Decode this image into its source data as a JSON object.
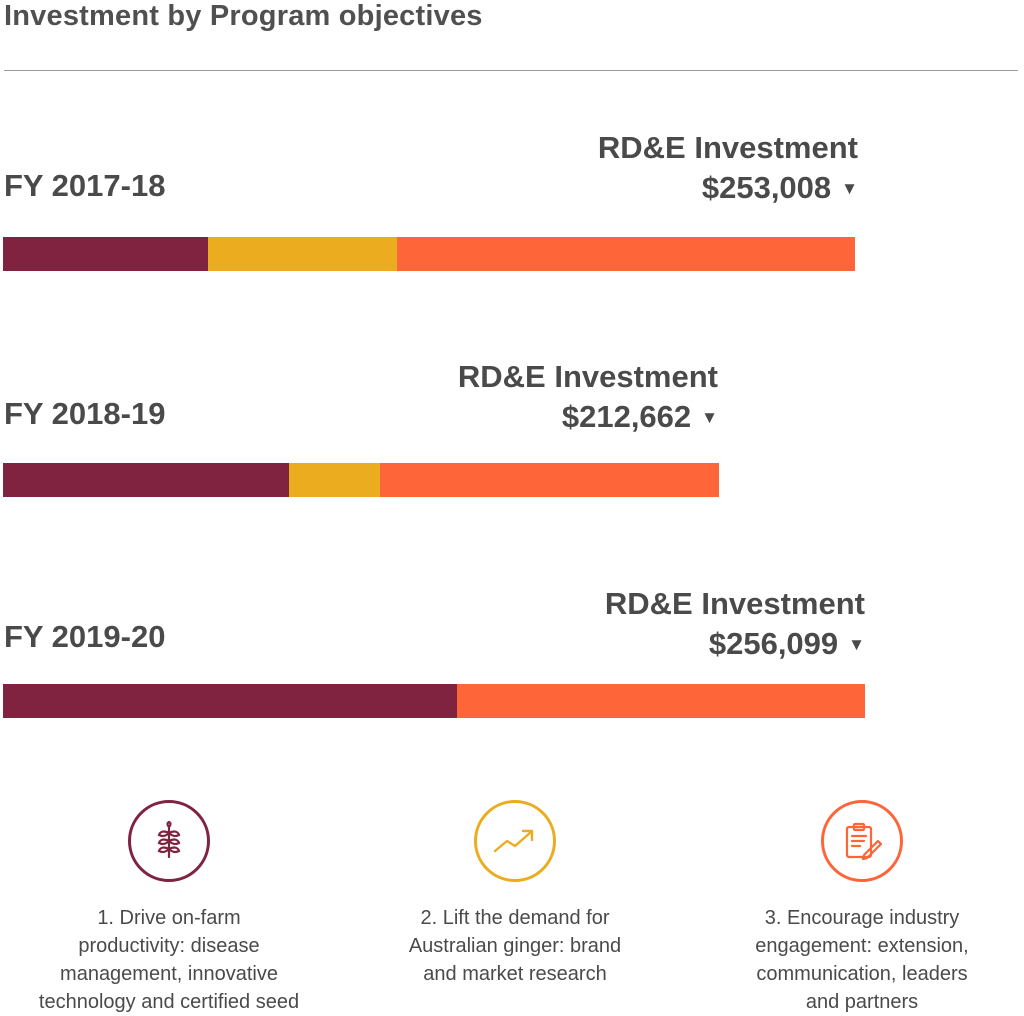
{
  "title": "Investment by Program objectives",
  "colors": {
    "program1": "#7f2340",
    "program2": "#ebad1f",
    "program3": "#fe6538"
  },
  "chart_data": {
    "type": "bar",
    "orientation": "horizontal-stacked",
    "categories": [
      "FY 2017-18",
      "FY 2018-19",
      "FY 2019-20"
    ],
    "investment_label": "RD&E Investment",
    "totals": [
      "$253,008",
      "$212,662",
      "$256,099"
    ],
    "total_values": [
      253008,
      212662,
      256099
    ],
    "series": [
      {
        "name": "1. Drive on-farm productivity: disease management, innovative technology and certified seed",
        "values": [
          61000,
          85000,
          135000
        ]
      },
      {
        "name": "2. Lift the demand for Australian ginger: brand and market research",
        "values": [
          56000,
          27000,
          0
        ]
      },
      {
        "name": "3. Encourage industry engagement: extension, communication, leaders and partners",
        "values": [
          136008,
          100662,
          121099
        ]
      }
    ]
  },
  "legend": [
    {
      "icon": "plant-icon",
      "text": "1. Drive on-farm\nproductivity: disease\nmanagement, innovative\ntechnology and certified seed"
    },
    {
      "icon": "trend-up-icon",
      "text": "2. Lift the demand for\nAustralian ginger: brand\nand market research"
    },
    {
      "icon": "clipboard-pen-icon",
      "text": "3. Encourage industry\nengagement: extension,\ncommunication, leaders\nand partners"
    }
  ]
}
